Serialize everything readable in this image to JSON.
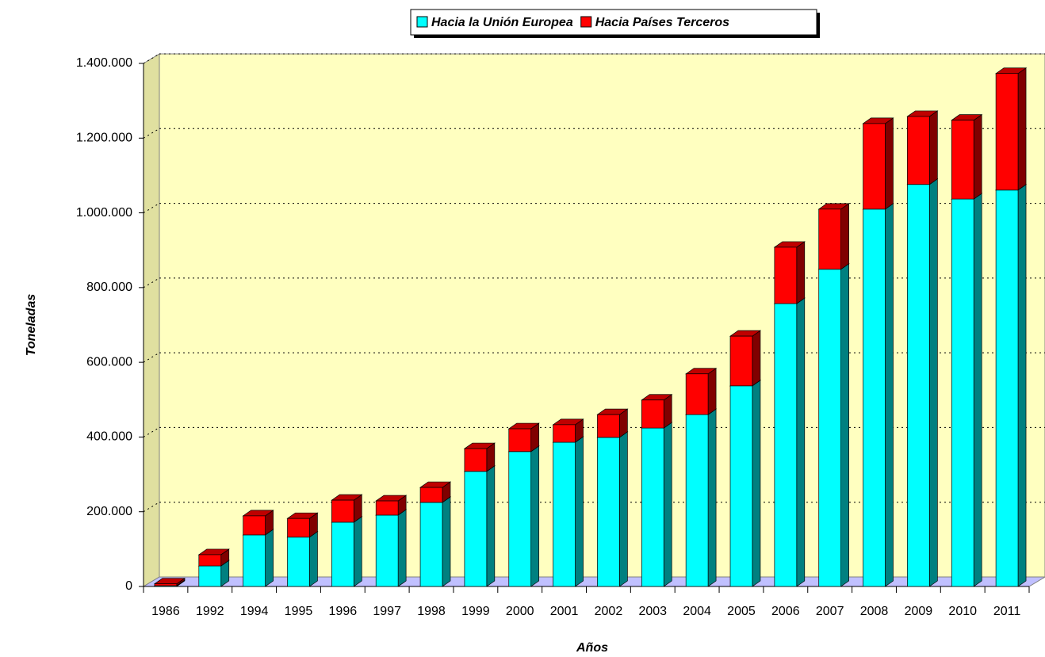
{
  "chart_data": {
    "type": "bar3d_stacked",
    "x_label": "Años",
    "y_label": "Toneladas",
    "categories": [
      "1986",
      "1992",
      "1994",
      "1995",
      "1996",
      "1997",
      "1998",
      "1999",
      "2000",
      "2001",
      "2002",
      "2003",
      "2004",
      "2005",
      "2006",
      "2007",
      "2008",
      "2009",
      "2010",
      "2011"
    ],
    "series": [
      {
        "name": "Hacia la Unión Europea",
        "color": "#00ffff",
        "values": [
          2000,
          55000,
          138000,
          132000,
          172000,
          191000,
          225000,
          308000,
          361000,
          386000,
          399000,
          424000,
          460000,
          537000,
          757000,
          849000,
          1010000,
          1076000,
          1037000,
          1061000
        ]
      },
      {
        "name": "Hacia Países Terceros",
        "color": "#ff0000",
        "values": [
          5000,
          30000,
          51000,
          50000,
          59000,
          38000,
          40000,
          61000,
          61000,
          47000,
          61000,
          75000,
          109000,
          133000,
          151000,
          161000,
          229000,
          182000,
          211000,
          312000
        ]
      }
    ],
    "ylim": [
      0,
      1400000
    ],
    "yticks": [
      0,
      {
        "value": 200000,
        "label": "200.000"
      },
      {
        "value": 400000,
        "label": "400.000"
      },
      {
        "value": 600000,
        "label": "600.000"
      },
      {
        "value": 800000,
        "label": "800.000"
      },
      {
        "value": 1000000,
        "label": "1.000.000"
      },
      {
        "value": 1200000,
        "label": "1.200.000"
      },
      {
        "value": 1400000,
        "label": "1.400.000"
      }
    ],
    "grid": true,
    "legend": "top"
  }
}
